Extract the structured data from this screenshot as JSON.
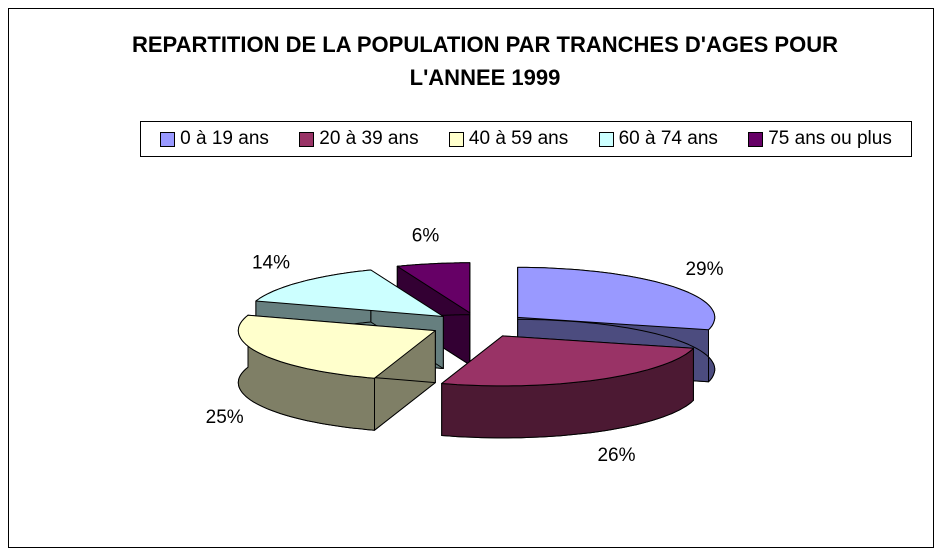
{
  "chart_data": {
    "type": "pie",
    "title": "REPARTITION DE LA POPULATION PAR TRANCHES D'AGES POUR L'ANNEE 1999",
    "categories": [
      "0 à 19 ans",
      "20 à 39 ans",
      "40 à 59 ans",
      "60 à 74 ans",
      "75 ans ou plus"
    ],
    "values": [
      29,
      26,
      25,
      14,
      6
    ],
    "value_labels": [
      "29%",
      "26%",
      "25%",
      "14%",
      "6%"
    ],
    "colors": [
      "#9999ff",
      "#993366",
      "#ffffcc",
      "#ccffff",
      "#660066"
    ],
    "legend": "top"
  }
}
